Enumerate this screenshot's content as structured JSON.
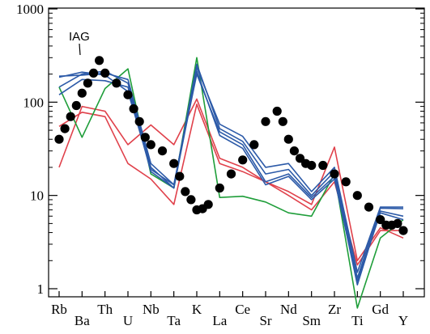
{
  "chart_data": {
    "type": "line",
    "log_y": true,
    "ylim": [
      1,
      1000
    ],
    "y_ticks": [
      "1",
      "10",
      "100",
      "1000"
    ],
    "categories": [
      "Rb",
      "Ba",
      "Th",
      "U",
      "Nb",
      "Ta",
      "K",
      "La",
      "Ce",
      "Sr",
      "Nd",
      "Sm",
      "Zr",
      "Ti",
      "Gd",
      "Y"
    ],
    "annotation": "IAG",
    "series": [
      {
        "color": "#e0414b",
        "values": [
          20,
          90,
          80,
          35,
          57,
          35,
          108,
          25,
          20,
          14,
          11,
          8,
          33,
          2,
          4.5,
          3.5
        ]
      },
      {
        "color": "#e0414b",
        "values": [
          55,
          78,
          70,
          22,
          15,
          8,
          95,
          22,
          18,
          14,
          10,
          7,
          14,
          1.8,
          4.2,
          4.2
        ]
      },
      {
        "color": "#1f9e3a",
        "values": [
          145,
          42,
          140,
          228,
          17,
          12,
          300,
          9.5,
          9.8,
          8.5,
          6.5,
          6,
          17,
          0.62,
          3.5,
          5.5
        ]
      },
      {
        "color": "#2c5aa8",
        "values": [
          190,
          195,
          205,
          175,
          22,
          13,
          235,
          58,
          43,
          20,
          22,
          11,
          20,
          1.5,
          7.5,
          7.5
        ]
      },
      {
        "color": "#2c5aa8",
        "values": [
          145,
          200,
          215,
          160,
          20,
          12,
          255,
          52,
          38,
          17,
          19,
          10,
          18,
          1.3,
          7.3,
          7.2
        ]
      },
      {
        "color": "#2c5aa8",
        "values": [
          185,
          210,
          195,
          130,
          19,
          13,
          200,
          48,
          35,
          14,
          17,
          9.5,
          16,
          1.1,
          6.8,
          6
        ]
      },
      {
        "color": "#2c5aa8",
        "values": [
          120,
          175,
          170,
          145,
          18,
          12,
          215,
          44,
          32,
          13,
          16,
          9,
          15,
          1.2,
          6.5,
          5.5
        ]
      }
    ],
    "dots": {
      "color": "#000000",
      "x": [
        1,
        1.25,
        1.5,
        1.75,
        2,
        2.25,
        2.5,
        2.75,
        3,
        3.5,
        4,
        4.25,
        4.5,
        4.75,
        5,
        5.5,
        6,
        6.25,
        6.5,
        6.75,
        7,
        7.25,
        7.5,
        8,
        8.5,
        9,
        9.5,
        10,
        10.5,
        10.75,
        11,
        11.25,
        11.5,
        11.75,
        12,
        12.5,
        13,
        13.5,
        14,
        14.5,
        15,
        15.25,
        15.5,
        15.75,
        16
      ],
      "y": [
        40,
        52,
        70,
        92,
        125,
        160,
        205,
        280,
        205,
        160,
        120,
        85,
        62,
        42,
        35,
        30,
        22,
        16,
        11,
        9,
        7,
        7.2,
        8,
        12,
        17,
        24,
        35,
        62,
        80,
        62,
        40,
        30,
        25,
        22,
        21,
        21,
        17,
        14,
        10,
        7.5,
        5.5,
        4.8,
        4.8,
        5,
        4.2
      ]
    }
  }
}
